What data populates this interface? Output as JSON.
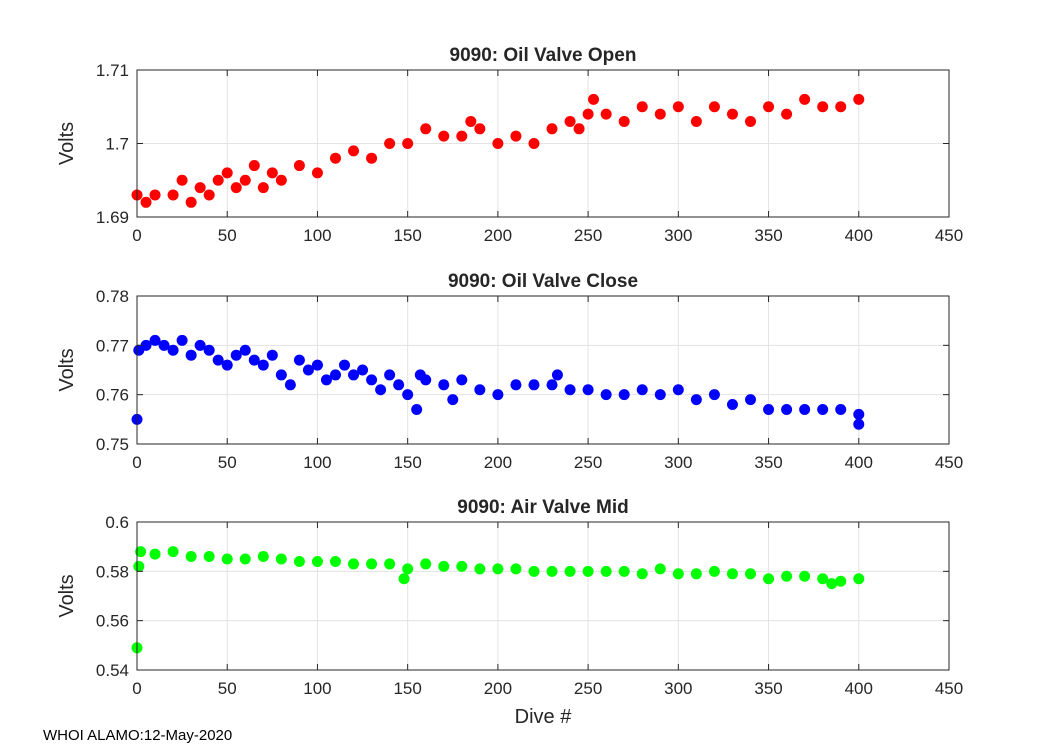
{
  "chart_data": [
    {
      "type": "scatter",
      "title": "9090: Oil Valve Open",
      "ylabel": "Volts",
      "xlabel": "",
      "xlim": [
        0,
        450
      ],
      "ylim": [
        1.69,
        1.71
      ],
      "xticks": [
        0,
        50,
        100,
        150,
        200,
        250,
        300,
        350,
        400,
        450
      ],
      "xtick_labels": [
        "0",
        "50",
        "100",
        "150",
        "200",
        "250",
        "300",
        "350",
        "400",
        "450"
      ],
      "yticks": [
        1.69,
        1.7,
        1.71
      ],
      "ytick_labels": [
        "1.69",
        "1.7",
        "1.71"
      ],
      "grid": true,
      "color": "#ff0000",
      "series": [
        {
          "name": "Oil Valve Open",
          "x": [
            0,
            5,
            10,
            20,
            25,
            30,
            35,
            40,
            45,
            50,
            55,
            60,
            65,
            70,
            75,
            80,
            90,
            100,
            110,
            120,
            130,
            140,
            150,
            160,
            170,
            180,
            185,
            190,
            200,
            210,
            220,
            230,
            240,
            245,
            250,
            253,
            260,
            270,
            280,
            290,
            300,
            310,
            320,
            330,
            340,
            350,
            360,
            370,
            380,
            390,
            400
          ],
          "y": [
            1.693,
            1.692,
            1.693,
            1.693,
            1.695,
            1.692,
            1.694,
            1.693,
            1.695,
            1.696,
            1.694,
            1.695,
            1.697,
            1.694,
            1.696,
            1.695,
            1.697,
            1.696,
            1.698,
            1.699,
            1.698,
            1.7,
            1.7,
            1.702,
            1.701,
            1.701,
            1.703,
            1.702,
            1.7,
            1.701,
            1.7,
            1.702,
            1.703,
            1.702,
            1.704,
            1.706,
            1.704,
            1.703,
            1.705,
            1.704,
            1.705,
            1.703,
            1.705,
            1.704,
            1.703,
            1.705,
            1.704,
            1.706,
            1.705,
            1.705,
            1.706
          ]
        }
      ]
    },
    {
      "type": "scatter",
      "title": "9090: Oil Valve Close",
      "ylabel": "Volts",
      "xlabel": "",
      "xlim": [
        0,
        450
      ],
      "ylim": [
        0.75,
        0.78
      ],
      "xticks": [
        0,
        50,
        100,
        150,
        200,
        250,
        300,
        350,
        400,
        450
      ],
      "xtick_labels": [
        "0",
        "50",
        "100",
        "150",
        "200",
        "250",
        "300",
        "350",
        "400",
        "450"
      ],
      "yticks": [
        0.75,
        0.76,
        0.77,
        0.78
      ],
      "ytick_labels": [
        "0.75",
        "0.76",
        "0.77",
        "0.78"
      ],
      "grid": true,
      "color": "#0000ff",
      "series": [
        {
          "name": "Oil Valve Close",
          "x": [
            0,
            1,
            5,
            10,
            15,
            20,
            25,
            30,
            35,
            40,
            45,
            50,
            55,
            60,
            65,
            70,
            75,
            80,
            85,
            90,
            95,
            100,
            105,
            110,
            115,
            120,
            125,
            130,
            135,
            140,
            145,
            150,
            155,
            157,
            160,
            170,
            175,
            180,
            190,
            200,
            210,
            220,
            230,
            233,
            240,
            250,
            260,
            270,
            280,
            290,
            300,
            310,
            320,
            330,
            340,
            350,
            360,
            370,
            380,
            390,
            400,
            400
          ],
          "y": [
            0.755,
            0.769,
            0.77,
            0.771,
            0.77,
            0.769,
            0.771,
            0.768,
            0.77,
            0.769,
            0.767,
            0.766,
            0.768,
            0.769,
            0.767,
            0.766,
            0.768,
            0.764,
            0.762,
            0.767,
            0.765,
            0.766,
            0.763,
            0.764,
            0.766,
            0.764,
            0.765,
            0.763,
            0.761,
            0.764,
            0.762,
            0.76,
            0.757,
            0.764,
            0.763,
            0.762,
            0.759,
            0.763,
            0.761,
            0.76,
            0.762,
            0.762,
            0.762,
            0.764,
            0.761,
            0.761,
            0.76,
            0.76,
            0.761,
            0.76,
            0.761,
            0.759,
            0.76,
            0.758,
            0.759,
            0.757,
            0.757,
            0.757,
            0.757,
            0.757,
            0.754,
            0.756
          ]
        }
      ]
    },
    {
      "type": "scatter",
      "title": "9090: Air Valve Mid",
      "ylabel": "Volts",
      "xlabel": "Dive #",
      "xlim": [
        0,
        450
      ],
      "ylim": [
        0.54,
        0.6
      ],
      "xticks": [
        0,
        50,
        100,
        150,
        200,
        250,
        300,
        350,
        400,
        450
      ],
      "xtick_labels": [
        "0",
        "50",
        "100",
        "150",
        "200",
        "250",
        "300",
        "350",
        "400",
        "450"
      ],
      "yticks": [
        0.54,
        0.56,
        0.58,
        0.6
      ],
      "ytick_labels": [
        "0.54",
        "0.56",
        "0.58",
        "0.6"
      ],
      "grid": true,
      "color": "#00ff00",
      "series": [
        {
          "name": "Air Valve Mid",
          "x": [
            0,
            1,
            2,
            10,
            20,
            30,
            40,
            50,
            60,
            70,
            80,
            90,
            100,
            110,
            120,
            130,
            140,
            148,
            150,
            160,
            170,
            180,
            190,
            200,
            210,
            220,
            230,
            240,
            250,
            260,
            270,
            280,
            290,
            300,
            310,
            320,
            330,
            340,
            350,
            360,
            370,
            380,
            385,
            390,
            400
          ],
          "y": [
            0.549,
            0.582,
            0.588,
            0.587,
            0.588,
            0.586,
            0.586,
            0.585,
            0.585,
            0.586,
            0.585,
            0.584,
            0.584,
            0.584,
            0.583,
            0.583,
            0.583,
            0.577,
            0.581,
            0.583,
            0.582,
            0.582,
            0.581,
            0.581,
            0.581,
            0.58,
            0.58,
            0.58,
            0.58,
            0.58,
            0.58,
            0.579,
            0.581,
            0.579,
            0.579,
            0.58,
            0.579,
            0.579,
            0.577,
            0.578,
            0.578,
            0.577,
            0.575,
            0.576,
            0.577
          ]
        }
      ]
    }
  ],
  "footer": {
    "text": "WHOI ALAMO:12-May-2020"
  }
}
